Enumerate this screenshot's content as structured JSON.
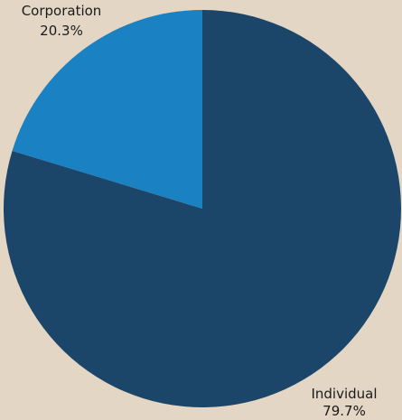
{
  "chart_data": {
    "type": "pie",
    "title": "",
    "start_angle_deg": 0,
    "direction": "clockwise",
    "slices": [
      {
        "label": "Individual",
        "value": 79.7,
        "value_label": "79.7%",
        "color": "#1c4669"
      },
      {
        "label": "Corporation",
        "value": 20.3,
        "value_label": "20.3%",
        "color": "#1a81c2"
      }
    ]
  },
  "colors": {
    "background": "#e3d6c4",
    "label_text": "#1b1b1b"
  }
}
